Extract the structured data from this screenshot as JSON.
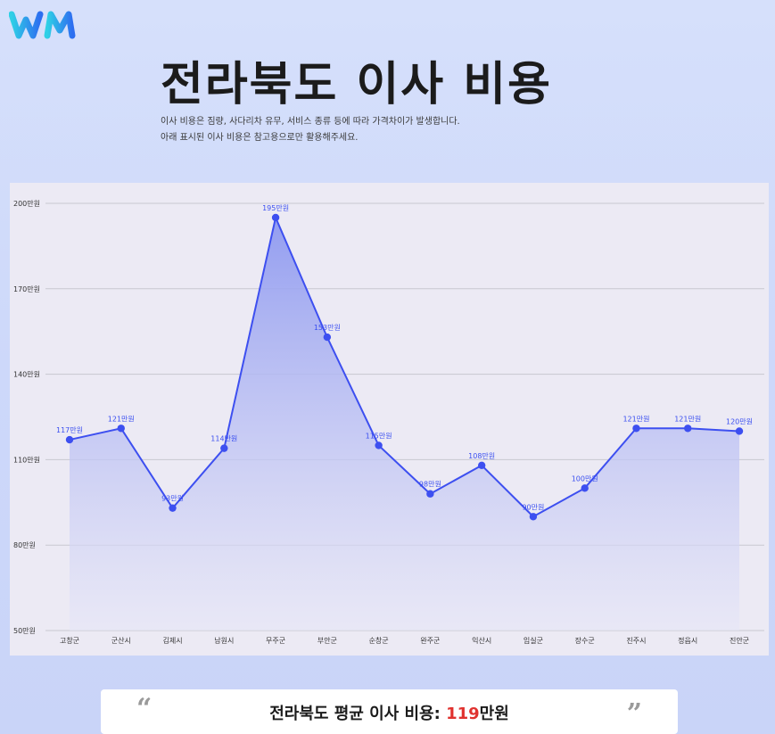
{
  "header": {
    "title": "전라북도 이사 비용",
    "description": [
      "이사 비용은 짐량, 사다리차 유무, 서비스 종류 등에 따라 가격차이가 발생합니다.",
      "아래 표시된 이사 비용은 참고용으로만 활용해주세요."
    ]
  },
  "colors": {
    "line": "#3d4ff0",
    "fill_top": "#8e99f0",
    "fill_bottom": "#e6e6f7",
    "accent": "#e0322f"
  },
  "chart_data": {
    "type": "area",
    "categories": [
      "고창군",
      "군산시",
      "김제시",
      "남원시",
      "무주군",
      "부안군",
      "순창군",
      "완주군",
      "익산시",
      "임실군",
      "장수군",
      "진주시",
      "정읍시",
      "진안군"
    ],
    "values": [
      117,
      121,
      93,
      114,
      195,
      153,
      115,
      98,
      108,
      90,
      100,
      121,
      121,
      120
    ],
    "value_labels": [
      "117만원",
      "121만원",
      "93만원",
      "114만원",
      "195만원",
      "153만원",
      "115만원",
      "98만원",
      "108만원",
      "90만원",
      "100만원",
      "121만원",
      "121만원",
      "120만원"
    ],
    "y_ticks": [
      50,
      80,
      110,
      140,
      170,
      200
    ],
    "y_tick_labels": [
      "50만원",
      "80만원",
      "110만원",
      "140만원",
      "170만원",
      "200만원"
    ],
    "ylim": [
      50,
      200
    ],
    "grid": true
  },
  "summary": {
    "open_quote": "“",
    "close_quote": "”",
    "label": "전라북도 평균 이사 비용: ",
    "value": "119",
    "unit": "만원"
  }
}
